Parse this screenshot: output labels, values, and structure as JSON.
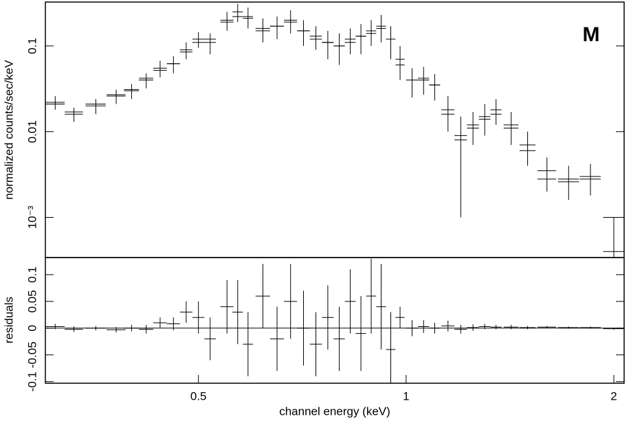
{
  "chart_data": [
    {
      "type": "errorbar",
      "annotation": "M",
      "ylabel": "normalized counts/sec/keV",
      "xscale": "log",
      "yscale": "log",
      "xlim": [
        0.3,
        2.07
      ],
      "ylim": [
        0.00034,
        0.325
      ],
      "yticks": [
        {
          "value": 0.001,
          "label": "10⁻³"
        },
        0.01,
        0.1
      ],
      "x": [
        0.31,
        0.33,
        0.355,
        0.38,
        0.4,
        0.42,
        0.44,
        0.46,
        0.48,
        0.5,
        0.52,
        0.55,
        0.57,
        0.59,
        0.62,
        0.65,
        0.68,
        0.71,
        0.74,
        0.77,
        0.8,
        0.83,
        0.86,
        0.89,
        0.92,
        0.95,
        0.98,
        1.02,
        1.06,
        1.1,
        1.15,
        1.2,
        1.25,
        1.3,
        1.35,
        1.42,
        1.5,
        1.6,
        1.72,
        1.85,
        2.0
      ],
      "xerr": [
        0.01,
        0.01,
        0.012,
        0.012,
        0.01,
        0.01,
        0.01,
        0.01,
        0.01,
        0.01,
        0.01,
        0.012,
        0.01,
        0.01,
        0.015,
        0.015,
        0.015,
        0.015,
        0.015,
        0.015,
        0.015,
        0.015,
        0.015,
        0.015,
        0.015,
        0.015,
        0.015,
        0.02,
        0.02,
        0.02,
        0.025,
        0.025,
        0.025,
        0.025,
        0.025,
        0.035,
        0.04,
        0.05,
        0.06,
        0.065,
        0.07
      ],
      "values": [
        0.022,
        0.016,
        0.02,
        0.026,
        0.03,
        0.04,
        0.055,
        0.062,
        0.09,
        0.12,
        0.11,
        0.2,
        0.25,
        0.22,
        0.16,
        0.17,
        0.2,
        0.15,
        0.13,
        0.11,
        0.1,
        0.12,
        0.13,
        0.15,
        0.17,
        0.12,
        0.07,
        0.04,
        0.042,
        0.035,
        0.018,
        0.008,
        0.012,
        0.015,
        0.018,
        0.012,
        0.007,
        0.0035,
        0.0028,
        0.003,
        0.0004
      ],
      "errors": [
        0.004,
        0.003,
        0.004,
        0.005,
        0.006,
        0.008,
        0.012,
        0.014,
        0.02,
        0.025,
        0.03,
        0.05,
        0.06,
        0.06,
        0.05,
        0.05,
        0.06,
        0.05,
        0.04,
        0.04,
        0.04,
        0.04,
        0.05,
        0.05,
        0.06,
        0.05,
        0.03,
        0.015,
        0.015,
        0.012,
        0.008,
        0.007,
        0.005,
        0.006,
        0.006,
        0.005,
        0.003,
        0.0015,
        0.0012,
        0.0012,
        0.0006
      ],
      "model": [
        0.021,
        0.017,
        0.021,
        0.027,
        0.031,
        0.042,
        0.052,
        0.062,
        0.085,
        0.11,
        0.12,
        0.19,
        0.22,
        0.21,
        0.15,
        0.17,
        0.19,
        0.15,
        0.12,
        0.11,
        0.1,
        0.11,
        0.13,
        0.14,
        0.16,
        0.12,
        0.06,
        0.04,
        0.04,
        0.035,
        0.016,
        0.009,
        0.011,
        0.014,
        0.016,
        0.011,
        0.006,
        0.0028,
        0.0026,
        0.0028,
        0.001
      ]
    },
    {
      "type": "errorbar",
      "ylabel": "residuals",
      "xlabel": "channel energy (keV)",
      "xscale": "log",
      "xlim": [
        0.3,
        2.07
      ],
      "ylim": [
        -0.103,
        0.132
      ],
      "xticks": [
        0.5,
        1,
        2
      ],
      "yticks": [
        -0.1,
        -0.05,
        0,
        0.05,
        0.1
      ],
      "x": [
        0.31,
        0.33,
        0.355,
        0.38,
        0.4,
        0.42,
        0.44,
        0.46,
        0.48,
        0.5,
        0.52,
        0.55,
        0.57,
        0.59,
        0.62,
        0.65,
        0.68,
        0.71,
        0.74,
        0.77,
        0.8,
        0.83,
        0.86,
        0.89,
        0.92,
        0.95,
        0.98,
        1.02,
        1.06,
        1.1,
        1.15,
        1.2,
        1.25,
        1.3,
        1.35,
        1.42,
        1.5,
        1.6,
        1.72,
        1.85,
        2.0
      ],
      "xerr": [
        0.01,
        0.01,
        0.012,
        0.012,
        0.01,
        0.01,
        0.01,
        0.01,
        0.01,
        0.01,
        0.01,
        0.012,
        0.01,
        0.01,
        0.015,
        0.015,
        0.015,
        0.015,
        0.015,
        0.015,
        0.015,
        0.015,
        0.015,
        0.015,
        0.015,
        0.015,
        0.015,
        0.02,
        0.02,
        0.02,
        0.025,
        0.025,
        0.025,
        0.025,
        0.025,
        0.035,
        0.04,
        0.05,
        0.06,
        0.065,
        0.07
      ],
      "values": [
        0.003,
        -0.002,
        0,
        -0.003,
        0,
        -0.002,
        0.01,
        0.008,
        0.03,
        0.02,
        -0.02,
        0.04,
        0.03,
        -0.03,
        0.06,
        -0.02,
        0.05,
        0,
        -0.03,
        0.02,
        -0.02,
        0.05,
        -0.01,
        0.06,
        0.04,
        -0.04,
        0.02,
        0,
        0.003,
        0,
        0.004,
        -0.002,
        0.001,
        0.003,
        0.002,
        0.002,
        0.001,
        0.002,
        0.001,
        0.001,
        -0.001
      ],
      "errors": [
        0.005,
        0.005,
        0.004,
        0.005,
        0.006,
        0.008,
        0.01,
        0.012,
        0.02,
        0.03,
        0.04,
        0.05,
        0.06,
        0.06,
        0.06,
        0.06,
        0.07,
        0.07,
        0.06,
        0.06,
        0.06,
        0.06,
        0.07,
        0.07,
        0.08,
        0.07,
        0.02,
        0.015,
        0.012,
        0.01,
        0.01,
        0.008,
        0.006,
        0.005,
        0.004,
        0.004,
        0.003,
        0.002,
        0.002,
        0.002,
        0.002
      ]
    }
  ]
}
